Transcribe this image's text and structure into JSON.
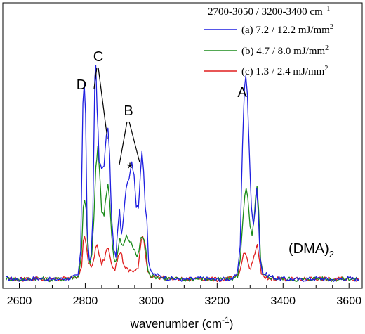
{
  "chart_data": {
    "type": "line",
    "xlabel": "wavenumber (cm",
    "xlabel_sup": "-1",
    "xlabel_tail": ")",
    "ylabel": "",
    "xlim": [
      2550,
      3640
    ],
    "ylim": [
      -0.03,
      1.12
    ],
    "x_ticks": [
      2600,
      2800,
      3000,
      3200,
      3400,
      3600
    ],
    "x_tick_labels": [
      "2600",
      "2800",
      "3000",
      "3200",
      "3400",
      "3600"
    ],
    "grid": false,
    "legend": {
      "placement": "top-right",
      "title": "2700-3050 / 3200-3400 cm",
      "title_sup": "−1",
      "entries": [
        {
          "label": "(a) 7.2 / 12.2 mJ/mm",
          "sup": "2",
          "color": "#1f1fe0"
        },
        {
          "label": "(b) 4.7 / 8.0 mJ/mm",
          "sup": "2",
          "color": "#1a8c1a"
        },
        {
          "label": "(c) 1.3 / 2.4 mJ/mm",
          "sup": "2",
          "color": "#e01f1f"
        }
      ]
    },
    "annotations": {
      "A": "A",
      "B": "B",
      "C": "C",
      "D": "D",
      "star": "*",
      "species_main": "(DMA)",
      "species_sub": "2"
    },
    "series": [
      {
        "name": "(a) 7.2 / 12.2 mJ/mm2",
        "color": "#1f1fe0",
        "points": [
          [
            2560,
            0.01
          ],
          [
            2600,
            0.005
          ],
          [
            2650,
            0.01
          ],
          [
            2700,
            0.005
          ],
          [
            2750,
            0.01
          ],
          [
            2778,
            0.02
          ],
          [
            2786,
            0.12
          ],
          [
            2793,
            0.72
          ],
          [
            2797,
            0.8
          ],
          [
            2801,
            0.68
          ],
          [
            2806,
            0.2
          ],
          [
            2812,
            0.08
          ],
          [
            2818,
            0.1
          ],
          [
            2823,
            0.25
          ],
          [
            2829,
            0.82
          ],
          [
            2832,
            0.87
          ],
          [
            2836,
            0.7
          ],
          [
            2842,
            0.48
          ],
          [
            2850,
            0.45
          ],
          [
            2857,
            0.47
          ],
          [
            2864,
            0.58
          ],
          [
            2869,
            0.62
          ],
          [
            2874,
            0.5
          ],
          [
            2880,
            0.25
          ],
          [
            2887,
            0.12
          ],
          [
            2893,
            0.1
          ],
          [
            2899,
            0.22
          ],
          [
            2904,
            0.28
          ],
          [
            2910,
            0.18
          ],
          [
            2916,
            0.25
          ],
          [
            2924,
            0.38
          ],
          [
            2933,
            0.42
          ],
          [
            2941,
            0.48
          ],
          [
            2948,
            0.43
          ],
          [
            2955,
            0.3
          ],
          [
            2961,
            0.3
          ],
          [
            2967,
            0.42
          ],
          [
            2972,
            0.52
          ],
          [
            2977,
            0.45
          ],
          [
            2982,
            0.3
          ],
          [
            2987,
            0.25
          ],
          [
            2992,
            0.08
          ],
          [
            3000,
            0.03
          ],
          [
            3050,
            0.01
          ],
          [
            3100,
            0.005
          ],
          [
            3150,
            0.01
          ],
          [
            3200,
            0.005
          ],
          [
            3250,
            0.01
          ],
          [
            3262,
            0.03
          ],
          [
            3270,
            0.15
          ],
          [
            3277,
            0.55
          ],
          [
            3283,
            0.78
          ],
          [
            3287,
            0.82
          ],
          [
            3292,
            0.75
          ],
          [
            3298,
            0.5
          ],
          [
            3304,
            0.3
          ],
          [
            3310,
            0.22
          ],
          [
            3315,
            0.28
          ],
          [
            3320,
            0.38
          ],
          [
            3325,
            0.28
          ],
          [
            3330,
            0.1
          ],
          [
            3338,
            0.03
          ],
          [
            3380,
            0.01
          ],
          [
            3450,
            0.005
          ],
          [
            3500,
            0.01
          ],
          [
            3550,
            0.005
          ],
          [
            3600,
            0.01
          ],
          [
            3630,
            0.005
          ]
        ]
      },
      {
        "name": "(b) 4.7 / 8.0 mJ/mm2",
        "color": "#1a8c1a",
        "points": [
          [
            2560,
            0.01
          ],
          [
            2600,
            0.005
          ],
          [
            2650,
            0.01
          ],
          [
            2700,
            0.005
          ],
          [
            2750,
            0.01
          ],
          [
            2780,
            0.02
          ],
          [
            2788,
            0.1
          ],
          [
            2794,
            0.3
          ],
          [
            2798,
            0.33
          ],
          [
            2803,
            0.28
          ],
          [
            2808,
            0.12
          ],
          [
            2814,
            0.07
          ],
          [
            2820,
            0.1
          ],
          [
            2826,
            0.25
          ],
          [
            2832,
            0.45
          ],
          [
            2838,
            0.54
          ],
          [
            2843,
            0.45
          ],
          [
            2850,
            0.28
          ],
          [
            2857,
            0.26
          ],
          [
            2864,
            0.35
          ],
          [
            2869,
            0.39
          ],
          [
            2874,
            0.33
          ],
          [
            2880,
            0.18
          ],
          [
            2887,
            0.09
          ],
          [
            2893,
            0.08
          ],
          [
            2899,
            0.12
          ],
          [
            2905,
            0.17
          ],
          [
            2911,
            0.14
          ],
          [
            2918,
            0.15
          ],
          [
            2925,
            0.18
          ],
          [
            2935,
            0.16
          ],
          [
            2943,
            0.14
          ],
          [
            2950,
            0.12
          ],
          [
            2957,
            0.1
          ],
          [
            2963,
            0.12
          ],
          [
            2968,
            0.17
          ],
          [
            2973,
            0.18
          ],
          [
            2978,
            0.17
          ],
          [
            2984,
            0.12
          ],
          [
            2990,
            0.05
          ],
          [
            2998,
            0.02
          ],
          [
            3050,
            0.01
          ],
          [
            3100,
            0.005
          ],
          [
            3150,
            0.01
          ],
          [
            3200,
            0.005
          ],
          [
            3250,
            0.01
          ],
          [
            3262,
            0.02
          ],
          [
            3270,
            0.08
          ],
          [
            3278,
            0.25
          ],
          [
            3284,
            0.35
          ],
          [
            3288,
            0.37
          ],
          [
            3293,
            0.33
          ],
          [
            3300,
            0.22
          ],
          [
            3306,
            0.18
          ],
          [
            3312,
            0.24
          ],
          [
            3317,
            0.35
          ],
          [
            3321,
            0.38
          ],
          [
            3326,
            0.28
          ],
          [
            3332,
            0.08
          ],
          [
            3340,
            0.02
          ],
          [
            3380,
            0.01
          ],
          [
            3450,
            0.005
          ],
          [
            3500,
            0.01
          ],
          [
            3550,
            0.005
          ],
          [
            3600,
            0.01
          ],
          [
            3630,
            0.005
          ]
        ]
      },
      {
        "name": "(c) 1.3 / 2.4 mJ/mm2",
        "color": "#e01f1f",
        "points": [
          [
            2560,
            0.01
          ],
          [
            2600,
            0.005
          ],
          [
            2650,
            0.01
          ],
          [
            2700,
            0.005
          ],
          [
            2750,
            0.01
          ],
          [
            2782,
            0.02
          ],
          [
            2789,
            0.06
          ],
          [
            2794,
            0.17
          ],
          [
            2798,
            0.18
          ],
          [
            2803,
            0.15
          ],
          [
            2810,
            0.07
          ],
          [
            2818,
            0.05
          ],
          [
            2825,
            0.08
          ],
          [
            2831,
            0.13
          ],
          [
            2836,
            0.14
          ],
          [
            2842,
            0.1
          ],
          [
            2850,
            0.07
          ],
          [
            2858,
            0.09
          ],
          [
            2865,
            0.13
          ],
          [
            2870,
            0.14
          ],
          [
            2875,
            0.1
          ],
          [
            2883,
            0.06
          ],
          [
            2890,
            0.05
          ],
          [
            2897,
            0.08
          ],
          [
            2903,
            0.11
          ],
          [
            2908,
            0.12
          ],
          [
            2914,
            0.08
          ],
          [
            2922,
            0.05
          ],
          [
            2932,
            0.04
          ],
          [
            2942,
            0.04
          ],
          [
            2952,
            0.04
          ],
          [
            2960,
            0.05
          ],
          [
            2965,
            0.1
          ],
          [
            2970,
            0.16
          ],
          [
            2974,
            0.18
          ],
          [
            2978,
            0.17
          ],
          [
            2983,
            0.1
          ],
          [
            2990,
            0.04
          ],
          [
            2998,
            0.02
          ],
          [
            3050,
            0.01
          ],
          [
            3100,
            0.005
          ],
          [
            3150,
            0.01
          ],
          [
            3200,
            0.005
          ],
          [
            3250,
            0.01
          ],
          [
            3265,
            0.02
          ],
          [
            3273,
            0.06
          ],
          [
            3280,
            0.11
          ],
          [
            3285,
            0.12
          ],
          [
            3290,
            0.09
          ],
          [
            3298,
            0.05
          ],
          [
            3305,
            0.06
          ],
          [
            3312,
            0.1
          ],
          [
            3318,
            0.13
          ],
          [
            3322,
            0.14
          ],
          [
            3327,
            0.09
          ],
          [
            3334,
            0.03
          ],
          [
            3342,
            0.01
          ],
          [
            3380,
            0.01
          ],
          [
            3450,
            0.005
          ],
          [
            3500,
            0.01
          ],
          [
            3550,
            0.005
          ],
          [
            3600,
            0.01
          ],
          [
            3630,
            0.005
          ]
        ]
      }
    ]
  }
}
